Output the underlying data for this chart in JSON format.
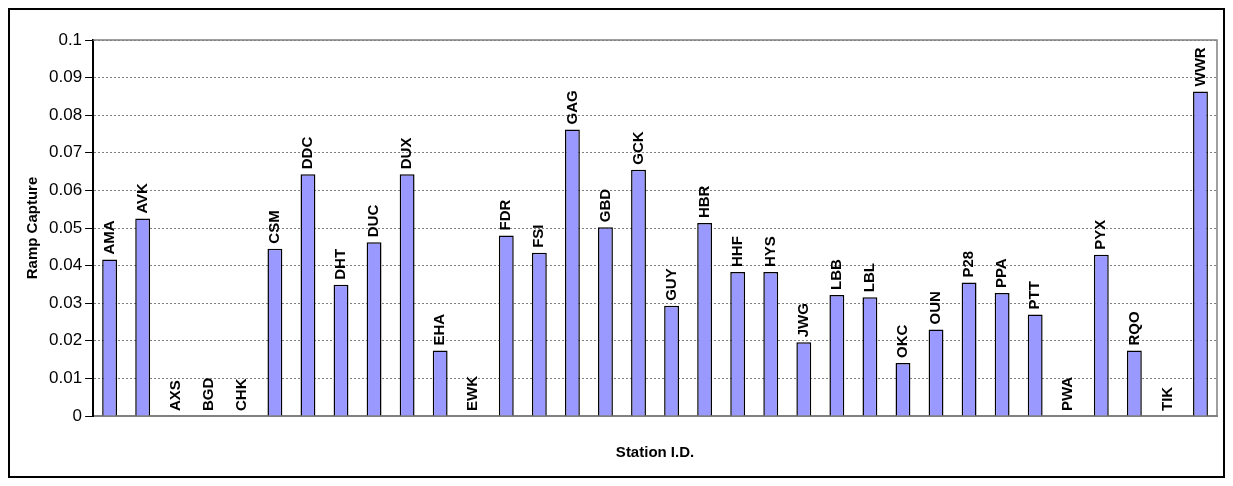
{
  "chart_data": {
    "type": "bar",
    "xlabel": "Station I.D.",
    "ylabel": "Ramp Capture",
    "categories": [
      "AMA",
      "AVK",
      "AXS",
      "BGD",
      "CHK",
      "CSM",
      "DDC",
      "DHT",
      "DUC",
      "DUX",
      "EHA",
      "EWK",
      "FDR",
      "FSI",
      "GAG",
      "GBD",
      "GCK",
      "GUY",
      "HBR",
      "HHF",
      "HYS",
      "JWG",
      "LBB",
      "LBL",
      "OKC",
      "OUN",
      "P28",
      "PPA",
      "PTT",
      "PWA",
      "PYX",
      "RQO",
      "TIK",
      "WWR"
    ],
    "values": [
      0.0416,
      0.0525,
      0,
      0,
      0,
      0.0445,
      0.0643,
      0.0349,
      0.0462,
      0.0643,
      0.0174,
      0,
      0.048,
      0.0434,
      0.0762,
      0.0502,
      0.0655,
      0.0293,
      0.0513,
      0.0383,
      0.0383,
      0.0196,
      0.0322,
      0.0316,
      0.0141,
      0.023,
      0.0355,
      0.0327,
      0.027,
      0,
      0.0429,
      0.0174,
      0,
      0.0863
    ],
    "color": "#9999ff",
    "ylim": [
      0,
      0.1
    ],
    "yticks": [
      0,
      0.01,
      0.02,
      0.03,
      0.04,
      0.05,
      0.06,
      0.07,
      0.08,
      0.09,
      0.1
    ],
    "grid": "y",
    "legend": false
  }
}
